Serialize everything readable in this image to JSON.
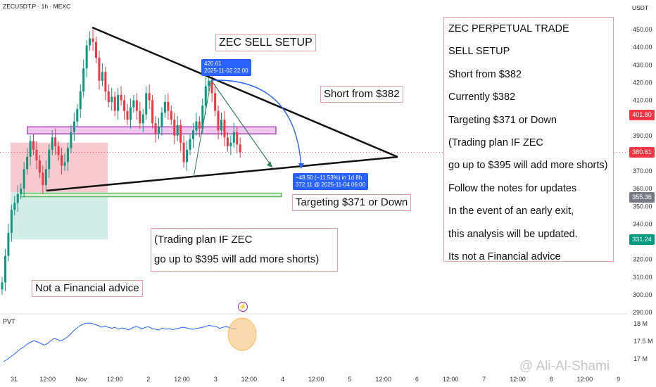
{
  "header": {
    "symbol": "ZECUSDT.P · 1h · MEXC",
    "currency": "USDT"
  },
  "notes": {
    "title": "ZEC SELL SETUP",
    "short_from": "Short from $382",
    "targeting": "Targeting $371 or Down",
    "plan_line1": "(Trading plan IF ZEC",
    "plan_line2": "go up to $395 will add more shorts)",
    "disclaimer": "Not a Financial advice"
  },
  "trade_plan": [
    "ZEC PERPETUAL TRADE",
    "SELL SETUP",
    "Short from $382",
    "Currently $382",
    "Targeting $371 or Down",
    "(Trading plan IF ZEC",
    "go up to $395 will add more shorts)",
    "Follow the notes for updates",
    "In the event of an early exit,",
    "this analysis will be updated.",
    "Its not a Financial advice"
  ],
  "price_tags": [
    {
      "label": "401.80",
      "color": "#f23645",
      "price": 401.8
    },
    {
      "label": "380.61",
      "color": "#f23645",
      "price": 380.61
    },
    {
      "label": "355.36",
      "color": "#787b86",
      "price": 355.36
    },
    {
      "label": "331.24",
      "color": "#089981",
      "price": 331.24
    }
  ],
  "tooltip_top": {
    "line1": "420.61",
    "line2": "2025-11-02 22:00"
  },
  "tooltip_bottom": {
    "line1": "−48.50 (−11.53%) in 1d 8h",
    "line2": "372.11 @ 2025-11-04 06:00"
  },
  "indicator": {
    "label": "PVT",
    "ticks": [
      "18 M",
      "17.5 M",
      "17 M"
    ]
  },
  "watermark": "@ Ali-Al-Shami",
  "chart_data": {
    "type": "candlestick",
    "title": "",
    "xlabel": "",
    "ylabel": "",
    "ylim": [
      290,
      450
    ],
    "y_ticks": [
      450,
      440,
      430,
      420,
      410,
      400,
      390,
      380,
      370,
      360,
      350,
      340,
      330,
      320,
      310,
      300,
      290
    ],
    "x_ticks": [
      "31",
      "12:00",
      "Nov",
      "12:00",
      "2",
      "12:00",
      "3",
      "12:00",
      "4",
      "12:00",
      "5",
      "12:00",
      "6",
      "12:00",
      "7",
      "12:00",
      "8",
      "12:00",
      "9"
    ],
    "grid": false,
    "current_price": 380.61,
    "swing_high": 420.61,
    "target_price": 372.11,
    "add_short_zone": [
      393,
      395
    ],
    "support_zone": [
      355.4,
      357.5
    ],
    "candles_close": [
      307,
      322,
      335,
      348,
      352,
      357,
      360,
      371,
      378,
      387,
      382,
      376,
      369,
      362,
      371,
      382,
      389,
      384,
      379,
      373,
      375,
      383,
      392,
      398,
      405,
      415,
      428,
      441,
      445,
      443,
      434,
      421,
      426,
      415,
      409,
      412,
      404,
      413,
      410,
      404,
      399,
      406,
      410,
      404,
      397,
      402,
      414,
      410,
      397,
      391,
      395,
      403,
      409,
      404,
      399,
      390,
      396,
      386,
      375,
      382,
      388,
      393,
      398,
      394,
      407,
      418,
      421,
      414,
      404,
      393,
      399,
      389,
      384,
      386,
      392,
      385,
      380.6
    ],
    "pvt_series": [
      16.92,
      16.98,
      17.05,
      17.12,
      17.2,
      17.28,
      17.34,
      17.42,
      17.47,
      17.52,
      17.48,
      17.44,
      17.39,
      17.43,
      17.52,
      17.58,
      17.55,
      17.51,
      17.56,
      17.63,
      17.72,
      17.82,
      17.9,
      17.96,
      18.0,
      18.02,
      18.01,
      17.98,
      17.95,
      17.9,
      17.93,
      17.9,
      17.87,
      17.9,
      17.84,
      17.88,
      17.86,
      17.82,
      17.87,
      17.92,
      17.9,
      17.85,
      17.9,
      17.91,
      17.86,
      17.84,
      17.82,
      17.88,
      17.84,
      17.86,
      17.83,
      17.85,
      17.87,
      17.9,
      17.88,
      17.86,
      17.84,
      17.86,
      17.88,
      17.9,
      17.93,
      17.95,
      17.93,
      17.92,
      17.86,
      17.9,
      17.92,
      17.88,
      17.85,
      17.86
    ]
  }
}
